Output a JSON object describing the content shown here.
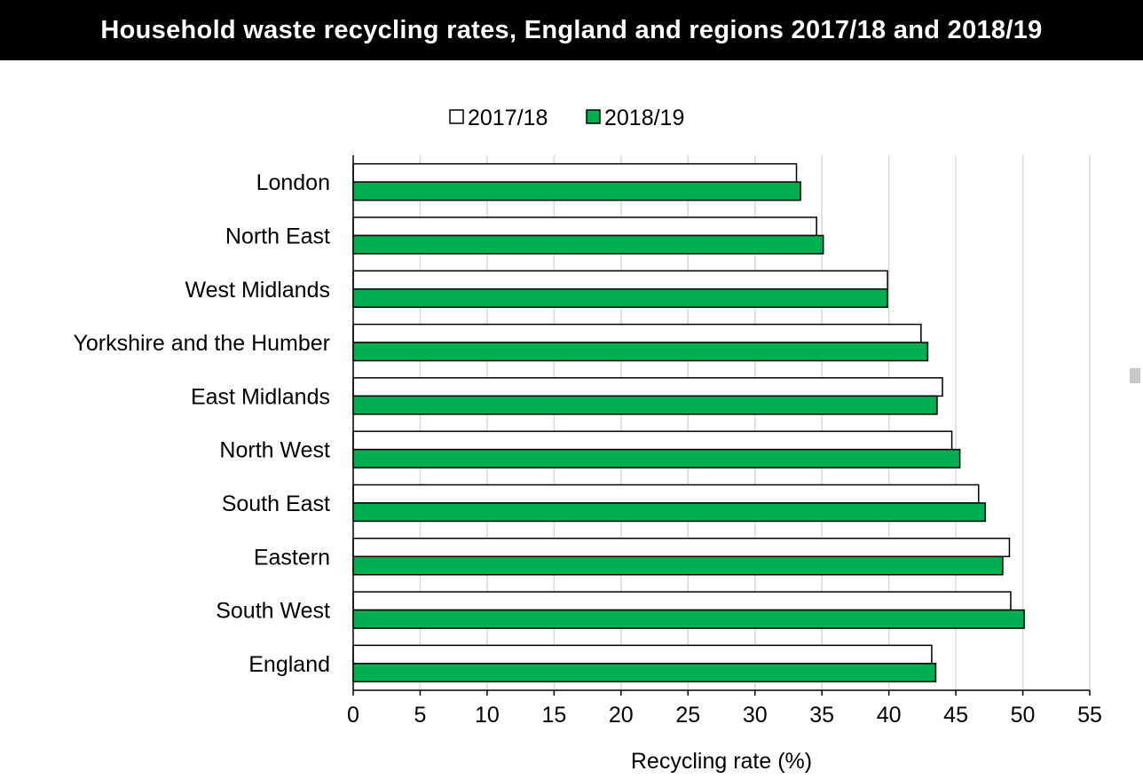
{
  "page_title": "Household waste recycling rates, England and regions 2017/18 and 2018/19",
  "colors": {
    "series_2017": "#ffffff",
    "series_2018": "#00b050",
    "outline": "#000000",
    "grid": "#d9d9d9",
    "title_bg": "#000000",
    "title_fg": "#ffffff"
  },
  "chart_data": {
    "type": "bar",
    "orientation": "horizontal",
    "categories": [
      "London",
      "North East",
      "West Midlands",
      "Yorkshire and the Humber",
      "East Midlands",
      "North West",
      "South East",
      "Eastern",
      "South West",
      "England"
    ],
    "series": [
      {
        "name": "2017/18",
        "values": [
          33.1,
          34.6,
          39.9,
          42.4,
          44.0,
          44.7,
          46.7,
          49.0,
          49.1,
          43.2
        ],
        "color": "#ffffff"
      },
      {
        "name": "2018/19",
        "values": [
          33.4,
          35.1,
          39.9,
          42.9,
          43.6,
          45.3,
          47.2,
          48.5,
          50.1,
          43.5
        ],
        "color": "#00b050"
      }
    ],
    "xlabel": "Recycling rate (%)",
    "ylabel": "",
    "xlim": [
      0,
      55
    ],
    "xticks": [
      0,
      5,
      10,
      15,
      20,
      25,
      30,
      35,
      40,
      45,
      50,
      55
    ],
    "grid": "vertical",
    "legend_position": "top"
  }
}
